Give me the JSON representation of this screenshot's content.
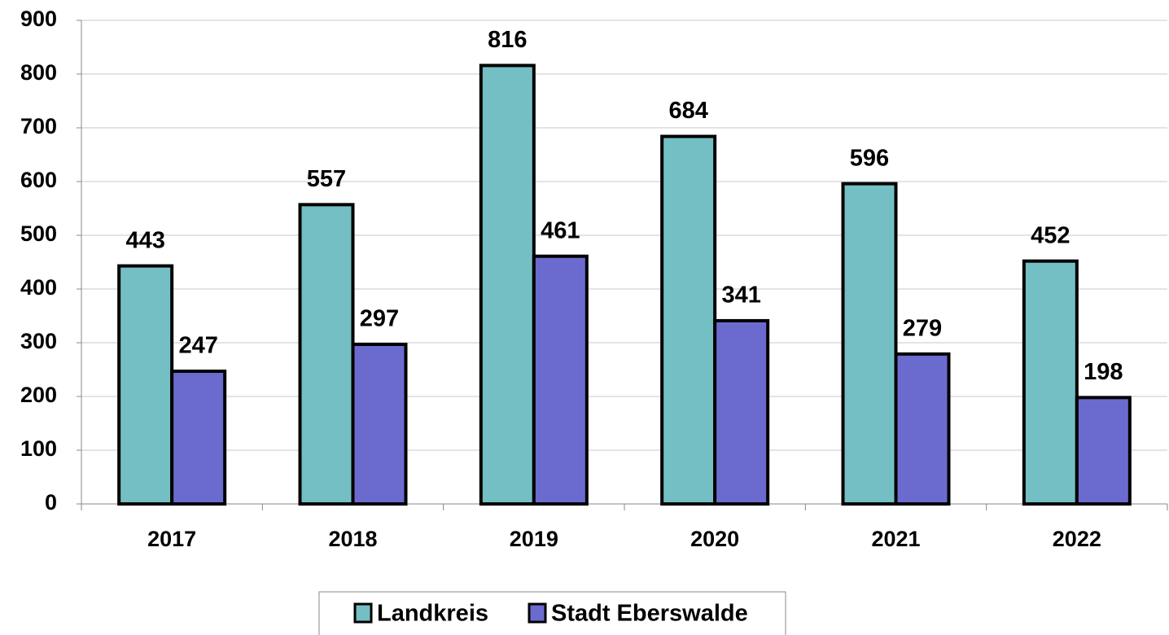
{
  "chart_data": {
    "type": "bar",
    "categories": [
      "2017",
      "2018",
      "2019",
      "2020",
      "2021",
      "2022"
    ],
    "series": [
      {
        "name": "Landkreis",
        "color": "#73bfc4",
        "values": [
          443,
          557,
          816,
          684,
          596,
          452
        ]
      },
      {
        "name": "Stadt Eberswalde",
        "color": "#6b6bcf",
        "values": [
          247,
          297,
          461,
          341,
          279,
          198
        ]
      }
    ],
    "ylim": [
      0,
      900
    ],
    "yticks": [
      0,
      100,
      200,
      300,
      400,
      500,
      600,
      700,
      800,
      900
    ],
    "grid": true,
    "legend": "bottom"
  }
}
